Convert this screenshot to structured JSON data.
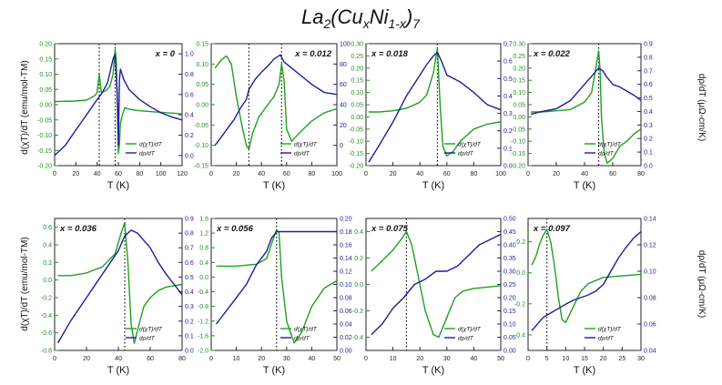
{
  "figure": {
    "title_main": "La",
    "title_sub": "2",
    "title_rest_1": "(Cu",
    "title_sub_x": "x",
    "title_rest_2": "Ni",
    "title_sub_1mx": "1-x",
    "title_rest_3": ")",
    "title_sub_7": "7",
    "title_full": "La2(CuxNi1-x)7",
    "left_ylabel": "d(χT)/dT (emu/mol-TM)",
    "right_ylabel": "dρ/dT (μΩ-cm/K)",
    "xlabel": "T (K)"
  },
  "colors": {
    "green": "#1fa01f",
    "blue": "#1d1d9c",
    "axis_left": "#2a8a2a",
    "axis_right": "#1d1d9c"
  },
  "chart_data": [
    {
      "type": "line",
      "label": "x = 0",
      "xlim": [
        0,
        120
      ],
      "ylim": [
        -0.2,
        0.2
      ],
      "y2lim": [
        -0.1,
        1.1
      ],
      "xticks": [
        "0",
        "20",
        "40",
        "60",
        "80",
        "100",
        "120"
      ],
      "yticks": [
        "-0.20",
        "-0.15",
        "-0.10",
        "-0.05",
        "0.00",
        "0.05",
        "0.10",
        "0.15",
        "0.20"
      ],
      "y2ticks": [
        "0.0",
        "0.2",
        "0.4",
        "0.6",
        "0.8",
        "1.0"
      ],
      "dotted_x": [
        42,
        57
      ],
      "legend": [
        "d(χT)/dT",
        "dρ/dT"
      ],
      "series": [
        {
          "name": "d(χT)/dT",
          "axis": "left",
          "x": [
            0,
            20,
            30,
            38,
            40,
            42,
            44,
            48,
            52,
            55,
            57,
            58,
            59,
            60,
            61,
            62,
            64,
            66,
            70,
            80,
            100,
            120
          ],
          "y": [
            0.01,
            0.012,
            0.015,
            0.03,
            0.04,
            0.1,
            0.04,
            0.045,
            0.06,
            0.1,
            0.18,
            0.14,
            0.02,
            -0.16,
            -0.13,
            -0.06,
            -0.03,
            -0.01,
            -0.015,
            -0.02,
            -0.025,
            -0.03
          ]
        },
        {
          "name": "dρ/dT",
          "axis": "right",
          "x": [
            0,
            10,
            20,
            30,
            40,
            45,
            50,
            55,
            57,
            59,
            60,
            61,
            62,
            65,
            70,
            80,
            90,
            100,
            110,
            120
          ],
          "y": [
            0.0,
            0.1,
            0.25,
            0.4,
            0.55,
            0.62,
            0.72,
            0.95,
            1.0,
            0.6,
            0.1,
            0.75,
            0.85,
            0.75,
            0.65,
            0.55,
            0.48,
            0.42,
            0.38,
            0.35
          ]
        }
      ]
    },
    {
      "type": "line",
      "label": "x = 0.012",
      "xlim": [
        0,
        100
      ],
      "ylim": [
        -0.15,
        0.15
      ],
      "y2lim": [
        -20,
        100
      ],
      "xticks": [
        "0",
        "20",
        "40",
        "60",
        "80",
        "100"
      ],
      "yticks": [
        "-0.15",
        "-0.10",
        "-0.05",
        "0.00",
        "0.05",
        "0.10",
        "0.15"
      ],
      "y2ticks": [
        "0",
        "20",
        "40",
        "60",
        "80",
        "100"
      ],
      "dotted_x": [
        30,
        56
      ],
      "legend": [
        "d(χT)/dT",
        "dρ/dT"
      ],
      "series": [
        {
          "name": "d(χT)/dT",
          "axis": "left",
          "x": [
            3,
            8,
            12,
            16,
            20,
            25,
            28,
            30,
            33,
            38,
            45,
            50,
            54,
            56,
            58,
            60,
            64,
            70,
            80,
            90,
            100
          ],
          "y": [
            0.09,
            0.11,
            0.12,
            0.1,
            0.02,
            -0.06,
            -0.1,
            -0.11,
            -0.07,
            -0.03,
            0.0,
            0.02,
            0.05,
            0.1,
            0.06,
            -0.06,
            -0.09,
            -0.07,
            -0.04,
            -0.02,
            -0.01
          ]
        },
        {
          "name": "dρ/dT",
          "axis": "right",
          "x": [
            3,
            8,
            12,
            18,
            24,
            28,
            30,
            35,
            40,
            45,
            50,
            55,
            58,
            60,
            65,
            70,
            80,
            90,
            100
          ],
          "y": [
            0,
            8,
            15,
            25,
            38,
            45,
            55,
            65,
            72,
            78,
            85,
            89,
            82,
            80,
            75,
            70,
            60,
            52,
            50
          ]
        }
      ]
    },
    {
      "type": "line",
      "label": "x = 0.018",
      "xlim": [
        0,
        100
      ],
      "ylim": [
        -0.2,
        0.3
      ],
      "y2lim": [
        0,
        0.7
      ],
      "xticks": [
        "0",
        "20",
        "40",
        "60",
        "80",
        "100"
      ],
      "yticks": [
        "-0.20",
        "-0.15",
        "-0.10",
        "-0.05",
        "0.00",
        "0.05",
        "0.10",
        "0.15",
        "0.20",
        "0.25",
        "0.30"
      ],
      "y2ticks": [
        "0.0",
        "0.1",
        "0.2",
        "0.3",
        "0.4",
        "0.5",
        "0.6",
        "0.7"
      ],
      "dotted_x": [
        53
      ],
      "legend": [
        "d(χT)/dT",
        "dρ/dT"
      ],
      "series": [
        {
          "name": "d(χT)/dT",
          "axis": "left",
          "x": [
            2,
            10,
            20,
            30,
            40,
            45,
            50,
            52,
            53,
            55,
            57,
            60,
            65,
            70,
            80,
            90,
            100
          ],
          "y": [
            0.02,
            0.02,
            0.025,
            0.035,
            0.06,
            0.09,
            0.18,
            0.25,
            0.28,
            0.05,
            -0.12,
            -0.16,
            -0.14,
            -0.1,
            -0.05,
            -0.03,
            -0.02
          ]
        },
        {
          "name": "dρ/dT",
          "axis": "right",
          "x": [
            2,
            10,
            20,
            30,
            40,
            45,
            50,
            53,
            56,
            60,
            65,
            70,
            80,
            90,
            100
          ],
          "y": [
            0.02,
            0.12,
            0.25,
            0.4,
            0.52,
            0.58,
            0.63,
            0.65,
            0.6,
            0.52,
            0.5,
            0.48,
            0.42,
            0.35,
            0.32
          ]
        }
      ]
    },
    {
      "type": "line",
      "label": "x = 0.022",
      "xlim": [
        0,
        80
      ],
      "ylim": [
        -0.2,
        0.3
      ],
      "y2lim": [
        0,
        0.9
      ],
      "xticks": [
        "0",
        "20",
        "40",
        "60",
        "80"
      ],
      "yticks": [
        "-0.20",
        "-0.15",
        "-0.10",
        "-0.05",
        "0.00",
        "0.05",
        "0.10",
        "0.15",
        "0.20",
        "0.25",
        "0.30"
      ],
      "y2ticks": [
        "0.0",
        "0.1",
        "0.2",
        "0.3",
        "0.4",
        "0.5",
        "0.6",
        "0.7",
        "0.8",
        "0.9"
      ],
      "dotted_x": [
        50
      ],
      "legend": [
        "d(χT)/dT",
        "dρ/dT"
      ],
      "series": [
        {
          "name": "d(χT)/dT",
          "axis": "left",
          "x": [
            2,
            10,
            20,
            30,
            40,
            45,
            48,
            50,
            51,
            52,
            54,
            56,
            60,
            65,
            70,
            75,
            80
          ],
          "y": [
            0.02,
            0.02,
            0.025,
            0.03,
            0.06,
            0.1,
            0.2,
            0.27,
            0.2,
            0.0,
            -0.15,
            -0.19,
            -0.17,
            -0.12,
            -0.1,
            -0.07,
            -0.05
          ]
        },
        {
          "name": "dρ/dT",
          "axis": "right",
          "x": [
            2,
            10,
            20,
            30,
            40,
            45,
            50,
            53,
            56,
            60,
            65,
            70,
            75,
            80
          ],
          "y": [
            0.38,
            0.4,
            0.42,
            0.48,
            0.6,
            0.66,
            0.72,
            0.7,
            0.65,
            0.6,
            0.58,
            0.55,
            0.52,
            0.48
          ]
        }
      ]
    },
    {
      "type": "line",
      "label": "x = 0.036",
      "xlim": [
        0,
        80
      ],
      "ylim": [
        -0.8,
        0.7
      ],
      "y2lim": [
        0,
        0.9
      ],
      "xticks": [
        "0",
        "20",
        "40",
        "60",
        "80"
      ],
      "yticks": [
        "-0.8",
        "-0.6",
        "-0.4",
        "-0.2",
        "0.0",
        "0.2",
        "0.4",
        "0.6"
      ],
      "y2ticks": [
        "0.0",
        "0.1",
        "0.2",
        "0.3",
        "0.4",
        "0.5",
        "0.6",
        "0.7",
        "0.8",
        "0.9"
      ],
      "dotted_x": [
        44
      ],
      "legend": [
        "d(χT)/dT",
        "dρ/dT"
      ],
      "series": [
        {
          "name": "d(χT)/dT",
          "axis": "left",
          "x": [
            2,
            10,
            20,
            30,
            38,
            42,
            44,
            46,
            48,
            50,
            53,
            56,
            60,
            65,
            70,
            80
          ],
          "y": [
            0.05,
            0.05,
            0.08,
            0.15,
            0.3,
            0.55,
            0.65,
            0.2,
            -0.5,
            -0.72,
            -0.5,
            -0.3,
            -0.2,
            -0.12,
            -0.08,
            -0.05
          ]
        },
        {
          "name": "dρ/dT",
          "axis": "right",
          "x": [
            2,
            10,
            20,
            30,
            40,
            44,
            48,
            52,
            56,
            60,
            65,
            70,
            75,
            80
          ],
          "y": [
            0.05,
            0.2,
            0.36,
            0.52,
            0.68,
            0.78,
            0.82,
            0.8,
            0.75,
            0.7,
            0.6,
            0.52,
            0.45,
            0.38
          ]
        }
      ]
    },
    {
      "type": "line",
      "label": "x = 0.056",
      "xlim": [
        0,
        50
      ],
      "ylim": [
        -2.0,
        1.6
      ],
      "y2lim": [
        0,
        0.2
      ],
      "xticks": [
        "0",
        "10",
        "20",
        "30",
        "40",
        "50"
      ],
      "yticks": [
        "-2.0",
        "-1.6",
        "-1.2",
        "-0.8",
        "-0.4",
        "0.0",
        "0.4",
        "0.8",
        "1.2",
        "1.6"
      ],
      "y2ticks": [
        "0.00",
        "0.02",
        "0.04",
        "0.06",
        "0.08",
        "0.10",
        "0.12",
        "0.14",
        "0.16",
        "0.18",
        "0.20"
      ],
      "dotted_x": [
        26
      ],
      "legend": [
        "d(χT)/dT",
        "dρ/dT"
      ],
      "series": [
        {
          "name": "d(χT)/dT",
          "axis": "left",
          "x": [
            2,
            10,
            18,
            22,
            24,
            26,
            27,
            28,
            30,
            33,
            36,
            40,
            45,
            50
          ],
          "y": [
            0.3,
            0.3,
            0.35,
            0.5,
            0.9,
            1.3,
            1.2,
            0.0,
            -1.2,
            -1.8,
            -1.5,
            -0.8,
            -0.3,
            -0.1
          ]
        },
        {
          "name": "dρ/dT",
          "axis": "right",
          "x": [
            2,
            8,
            14,
            18,
            22,
            24,
            26,
            28,
            30,
            35,
            40,
            45,
            50
          ],
          "y": [
            0.04,
            0.07,
            0.1,
            0.13,
            0.15,
            0.17,
            0.18,
            0.18,
            0.18,
            0.18,
            0.18,
            0.18,
            0.18
          ]
        }
      ]
    },
    {
      "type": "line",
      "label": "x = 0.075",
      "xlim": [
        0,
        50
      ],
      "ylim": [
        -0.5,
        0.5
      ],
      "y2lim": [
        0,
        0.5
      ],
      "xticks": [
        "0",
        "10",
        "20",
        "30",
        "40",
        "50"
      ],
      "yticks": [
        "-0.4",
        "-0.2",
        "0.0",
        "0.2",
        "0.4"
      ],
      "y2ticks": [
        "0.00",
        "0.05",
        "0.10",
        "0.15",
        "0.20",
        "0.25",
        "0.30",
        "0.35",
        "0.40",
        "0.45",
        "0.50"
      ],
      "dotted_x": [
        15
      ],
      "legend": [
        "d(χT)/dT",
        "dρ/dT"
      ],
      "series": [
        {
          "name": "d(χT)/dT",
          "axis": "left",
          "x": [
            2,
            6,
            10,
            13,
            15,
            17,
            19,
            22,
            25,
            27,
            30,
            33,
            36,
            40,
            45,
            50
          ],
          "y": [
            0.1,
            0.18,
            0.26,
            0.34,
            0.4,
            0.3,
            0.1,
            -0.2,
            -0.38,
            -0.4,
            -0.25,
            -0.1,
            -0.05,
            -0.03,
            -0.02,
            -0.01
          ]
        },
        {
          "name": "dρ/dT",
          "axis": "right",
          "x": [
            2,
            6,
            10,
            14,
            18,
            22,
            26,
            30,
            34,
            38,
            42,
            46,
            50
          ],
          "y": [
            0.06,
            0.1,
            0.16,
            0.2,
            0.25,
            0.27,
            0.3,
            0.3,
            0.32,
            0.36,
            0.4,
            0.42,
            0.44
          ]
        }
      ]
    },
    {
      "type": "line",
      "label": "x = 0.097",
      "xlim": [
        0,
        30
      ],
      "ylim": [
        -0.5,
        0.35
      ],
      "y2lim": [
        0.04,
        0.14
      ],
      "xticks": [
        "0",
        "5",
        "10",
        "15",
        "20",
        "25",
        "30"
      ],
      "yticks": [
        "-0.4",
        "-0.2",
        "0.0",
        "0.2"
      ],
      "y2ticks": [
        "0.04",
        "0.06",
        "0.08",
        "0.10",
        "0.12",
        "0.14"
      ],
      "dotted_x": [
        5
      ],
      "legend": [
        "d(χT)/dT",
        "dρ/dT"
      ],
      "series": [
        {
          "name": "d(χT)/dT",
          "axis": "left",
          "x": [
            1,
            2,
            3,
            4,
            5,
            6,
            7,
            8,
            9,
            10,
            12,
            14,
            16,
            20,
            25,
            30
          ],
          "y": [
            0.05,
            0.1,
            0.18,
            0.24,
            0.28,
            0.2,
            0.05,
            -0.15,
            -0.3,
            -0.32,
            -0.22,
            -0.12,
            -0.07,
            -0.03,
            -0.02,
            -0.01
          ]
        },
        {
          "name": "dρ/dT",
          "axis": "right",
          "x": [
            1,
            4,
            7,
            10,
            12,
            14,
            16,
            18,
            20,
            22,
            24,
            26,
            28,
            30
          ],
          "y": [
            0.055,
            0.065,
            0.07,
            0.075,
            0.078,
            0.08,
            0.082,
            0.085,
            0.09,
            0.1,
            0.11,
            0.118,
            0.125,
            0.13
          ]
        }
      ]
    }
  ]
}
